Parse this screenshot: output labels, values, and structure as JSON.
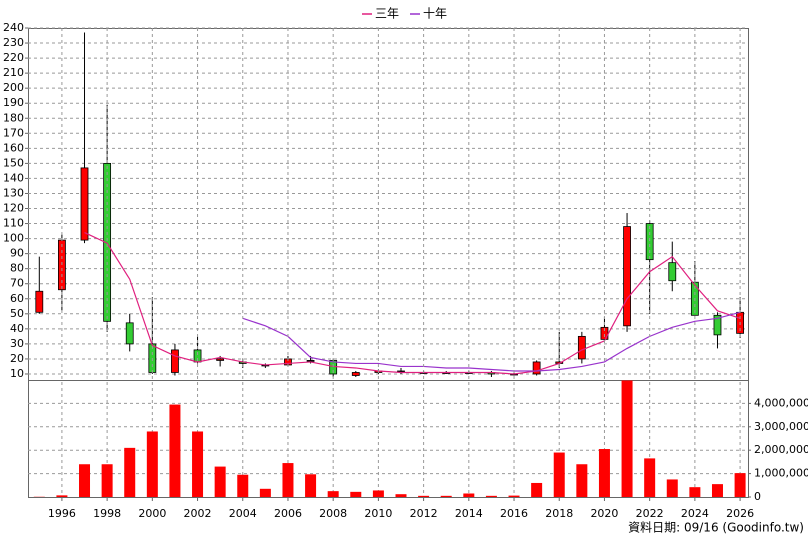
{
  "chart_data": [
    {
      "type": "candlestick",
      "x": [
        1995,
        1996,
        1997,
        1998,
        1999,
        2000,
        2001,
        2002,
        2003,
        2004,
        2005,
        2006,
        2007,
        2008,
        2009,
        2010,
        2011,
        2012,
        2013,
        2014,
        2015,
        2016,
        2017,
        2018,
        2019,
        2020,
        2021,
        2022,
        2023,
        2024,
        2025,
        2026
      ],
      "open": [
        51,
        66,
        99,
        150,
        44,
        30,
        11,
        26,
        19,
        18,
        16,
        16,
        19,
        19,
        9,
        11,
        12,
        11,
        11,
        11,
        11,
        10,
        10,
        17,
        20,
        33,
        42,
        110,
        84,
        71,
        49,
        37
      ],
      "high": [
        88,
        103,
        237,
        189,
        50,
        61,
        30,
        35,
        22,
        20,
        17,
        22,
        22,
        20,
        12,
        13,
        14,
        12,
        12,
        12,
        12,
        11,
        19,
        38,
        38,
        48,
        117,
        112,
        98,
        85,
        51,
        61
      ],
      "low": [
        50,
        52,
        97,
        38,
        25,
        10,
        9,
        17,
        15,
        14,
        14,
        15,
        17,
        8,
        8,
        10,
        10,
        10,
        10,
        10,
        8,
        9,
        9,
        14,
        17,
        31,
        38,
        50,
        65,
        49,
        27,
        34
      ],
      "close": [
        65,
        99,
        147,
        45,
        30,
        11,
        26,
        18,
        20,
        17,
        16,
        20,
        19,
        10,
        11,
        12,
        12,
        11,
        11,
        11,
        10,
        10,
        18,
        18,
        35,
        41,
        108,
        86,
        72,
        49,
        36,
        51
      ],
      "up_color": "#ff0000",
      "down_color": "#33cc33",
      "series": [
        {
          "name": "三年",
          "color": "#e0207f",
          "values": [
            null,
            null,
            104,
            97,
            73,
            29,
            22,
            18,
            21,
            18,
            16,
            17,
            18,
            15,
            14,
            12,
            11,
            11,
            11,
            11,
            11,
            10,
            12,
            17,
            26,
            32,
            60,
            78,
            88,
            69,
            52,
            47
          ]
        },
        {
          "name": "十年",
          "color": "#9933cc",
          "values": [
            null,
            null,
            null,
            null,
            null,
            null,
            null,
            null,
            null,
            47,
            42,
            35,
            21,
            18,
            17,
            17,
            15,
            15,
            14,
            14,
            13,
            12,
            12,
            13,
            15,
            18,
            27,
            35,
            41,
            45,
            47,
            51
          ]
        }
      ],
      "xlim": [
        1994.5,
        2026.35
      ],
      "ylim": [
        6,
        240
      ],
      "yticks": [
        10,
        20,
        30,
        40,
        50,
        60,
        70,
        80,
        90,
        100,
        110,
        120,
        130,
        140,
        150,
        160,
        170,
        180,
        190,
        200,
        210,
        220,
        230,
        240
      ],
      "grid": true
    },
    {
      "type": "bar",
      "x": [
        1995,
        1996,
        1997,
        1998,
        1999,
        2000,
        2001,
        2002,
        2003,
        2004,
        2005,
        2006,
        2007,
        2008,
        2009,
        2010,
        2011,
        2012,
        2013,
        2014,
        2015,
        2016,
        2017,
        2018,
        2019,
        2020,
        2021,
        2022,
        2023,
        2024,
        2025,
        2026
      ],
      "values": [
        10000,
        70000,
        1400000,
        1400000,
        2100000,
        2800000,
        3950000,
        2800000,
        1300000,
        950000,
        350000,
        1450000,
        970000,
        250000,
        220000,
        280000,
        120000,
        50000,
        50000,
        150000,
        50000,
        60000,
        600000,
        1900000,
        1400000,
        2050000,
        4980000,
        1650000,
        750000,
        420000,
        550000,
        1020000
      ],
      "color": "#ff0000",
      "xlim": [
        1994.5,
        2026.35
      ],
      "ylim": [
        0,
        5000000
      ],
      "yticks": [
        0,
        {
          "value": 1000000,
          "label": "1,000,000"
        },
        {
          "value": 2000000,
          "label": "2,000,000"
        },
        {
          "value": 3000000,
          "label": "3,000,000"
        },
        {
          "value": 4000000,
          "label": "4,000,000"
        }
      ],
      "xticks": [
        1996,
        1998,
        2000,
        2002,
        2004,
        2006,
        2008,
        2010,
        2012,
        2014,
        2016,
        2018,
        2020,
        2022,
        2024,
        2026
      ],
      "grid": true,
      "note": "資料日期: 09/16 (Goodinfo.tw)"
    }
  ]
}
